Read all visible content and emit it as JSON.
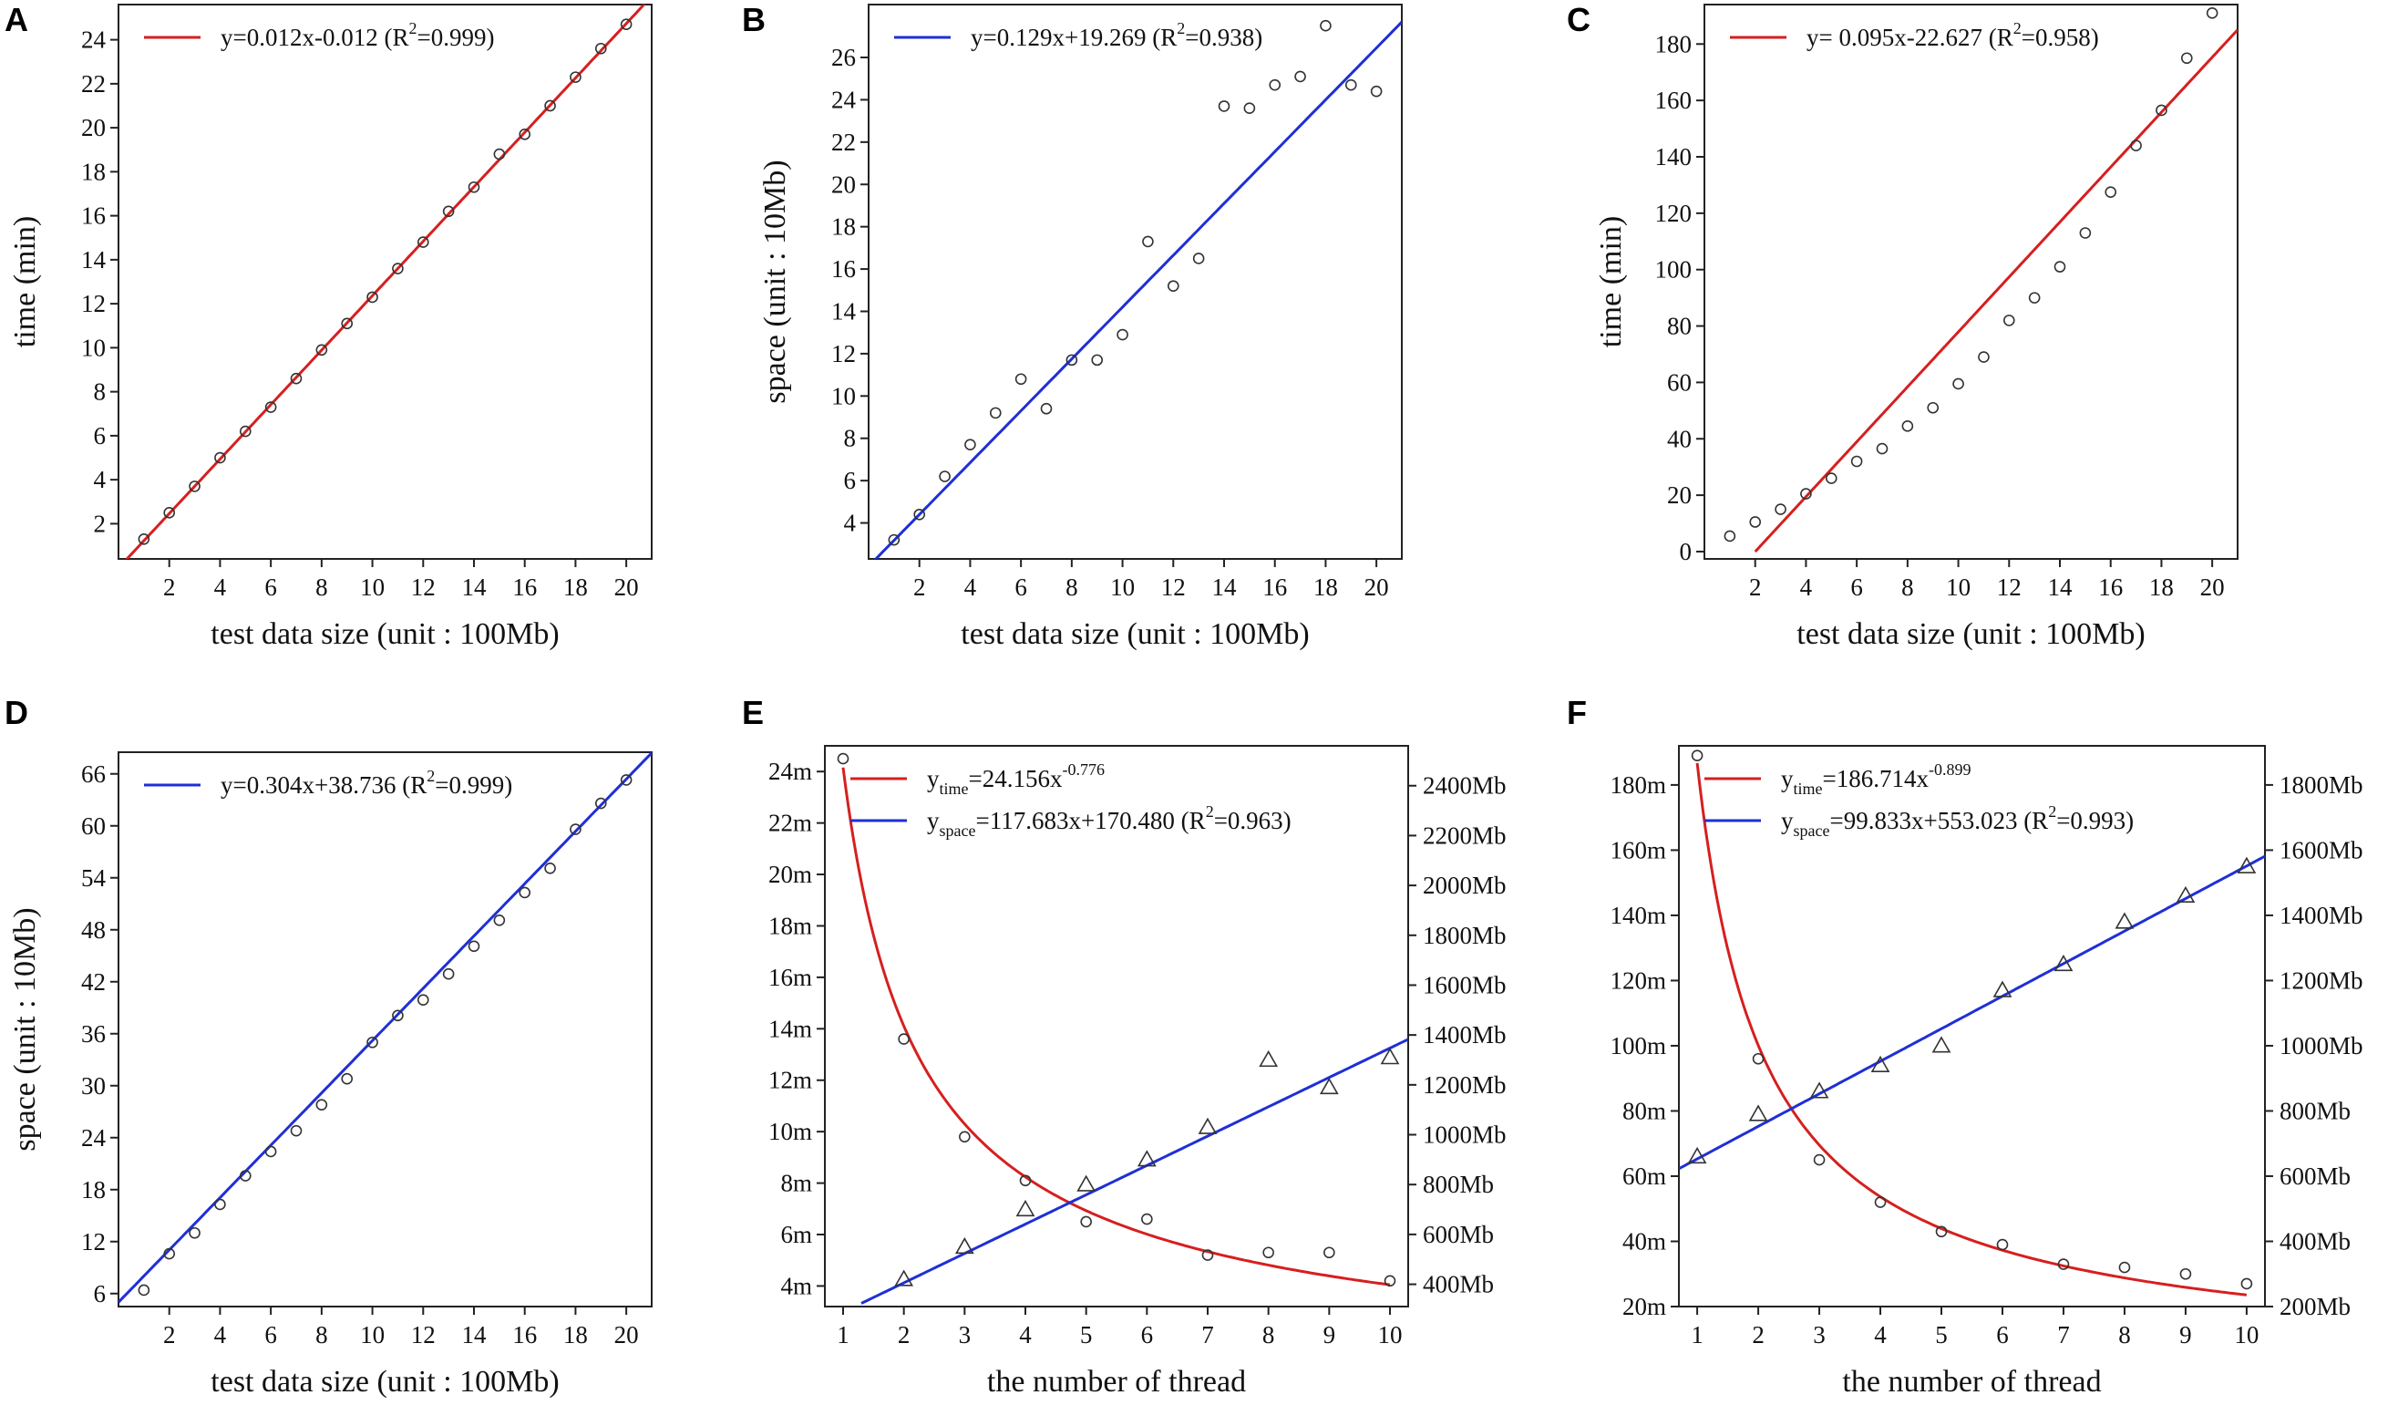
{
  "chart_data": [
    {
      "panel": "A",
      "type": "scatter",
      "xlabel": "test data size (unit : 100Mb)",
      "ylabel": "time (min)",
      "xlim": [
        0,
        21
      ],
      "ylim": [
        0.4,
        25.6
      ],
      "xticks": [
        2,
        4,
        6,
        8,
        10,
        12,
        14,
        16,
        18,
        20
      ],
      "yticks": [
        2,
        4,
        6,
        8,
        10,
        12,
        14,
        16,
        18,
        20,
        22,
        24
      ],
      "series": [
        {
          "name": "time",
          "color": "#d61f1f",
          "marker": "circle",
          "x": [
            1,
            2,
            3,
            4,
            5,
            6,
            7,
            8,
            9,
            10,
            11,
            12,
            13,
            14,
            15,
            16,
            17,
            18,
            19,
            20
          ],
          "y": [
            1.3,
            2.5,
            3.7,
            5.0,
            6.2,
            7.3,
            8.6,
            9.9,
            11.1,
            12.3,
            13.6,
            14.8,
            16.2,
            17.3,
            18.8,
            19.7,
            21.0,
            22.3,
            23.6,
            24.7
          ],
          "fit": {
            "kind": "linear",
            "a": 1.2375,
            "b": -0.012,
            "x_range": [
              0,
              21
            ]
          }
        }
      ],
      "legend": {
        "position": "top-left",
        "entries": [
          {
            "color": "#d61f1f",
            "label": "y=0.012x-0.012 (R",
            "sup": "2",
            "tail": "=0.999)"
          }
        ]
      }
    },
    {
      "panel": "B",
      "type": "scatter",
      "xlabel": "test data size (unit : 100Mb)",
      "ylabel": "space (unit : 10Mb)",
      "xlim": [
        0,
        21
      ],
      "ylim": [
        2.3,
        28.5
      ],
      "xticks": [
        2,
        4,
        6,
        8,
        10,
        12,
        14,
        16,
        18,
        20
      ],
      "yticks": [
        4,
        6,
        8,
        10,
        12,
        14,
        16,
        18,
        20,
        22,
        24,
        26
      ],
      "series": [
        {
          "name": "space",
          "color": "#1f2fd6",
          "marker": "circle",
          "x": [
            1,
            2,
            3,
            4,
            5,
            6,
            7,
            8,
            9,
            10,
            11,
            12,
            13,
            14,
            15,
            16,
            17,
            18,
            19,
            20
          ],
          "y": [
            3.2,
            4.4,
            6.2,
            7.7,
            9.2,
            10.8,
            9.4,
            11.7,
            11.7,
            12.9,
            17.3,
            15.2,
            16.5,
            23.7,
            23.6,
            24.7,
            25.1,
            27.5,
            24.7,
            24.4
          ],
          "fit": {
            "kind": "linear",
            "a": 1.225,
            "b": 1.95,
            "x_range": [
              0,
              21
            ]
          }
        }
      ],
      "legend": {
        "position": "top-left",
        "entries": [
          {
            "color": "#1f2fd6",
            "label": "y=0.129x+19.269 (R",
            "sup": "2",
            "tail": "=0.938)"
          }
        ]
      }
    },
    {
      "panel": "C",
      "type": "scatter",
      "xlabel": "test data size (unit : 100Mb)",
      "ylabel": "time (min)",
      "xlim": [
        0,
        21
      ],
      "ylim": [
        -2.6,
        194
      ],
      "xticks": [
        2,
        4,
        6,
        8,
        10,
        12,
        14,
        16,
        18,
        20
      ],
      "yticks": [
        0,
        20,
        40,
        60,
        80,
        100,
        120,
        140,
        160,
        180
      ],
      "series": [
        {
          "name": "time",
          "color": "#d61f1f",
          "marker": "circle",
          "x": [
            1,
            2,
            3,
            4,
            5,
            6,
            7,
            8,
            9,
            10,
            11,
            12,
            13,
            14,
            15,
            16,
            17,
            18,
            19,
            20
          ],
          "y": [
            5.5,
            10.5,
            15,
            20.5,
            26,
            32,
            36.5,
            44.5,
            51,
            59.5,
            69,
            82,
            90,
            101,
            113,
            127.5,
            144,
            156.5,
            175,
            191
          ],
          "fit": {
            "kind": "linear",
            "a": 9.74,
            "b": -19.5,
            "x_range": [
              2.0,
              21
            ]
          }
        }
      ],
      "legend": {
        "position": "top-left",
        "entries": [
          {
            "color": "#d61f1f",
            "label": "y= 0.095x-22.627 (R",
            "sup": "2",
            "tail": "=0.958)"
          }
        ]
      }
    },
    {
      "panel": "D",
      "type": "scatter",
      "xlabel": "test data size (unit : 100Mb)",
      "ylabel": "space (unit : 10Mb)",
      "xlim": [
        0,
        21
      ],
      "ylim": [
        4.5,
        68.5
      ],
      "xticks": [
        2,
        4,
        6,
        8,
        10,
        12,
        14,
        16,
        18,
        20
      ],
      "yticks": [
        6,
        12,
        18,
        24,
        30,
        36,
        42,
        48,
        54,
        60,
        66
      ],
      "series": [
        {
          "name": "space",
          "color": "#1f2fd6",
          "marker": "circle",
          "x": [
            1,
            2,
            3,
            4,
            5,
            6,
            7,
            8,
            9,
            10,
            11,
            12,
            13,
            14,
            15,
            16,
            17,
            18,
            19,
            20
          ],
          "y": [
            6.4,
            10.6,
            13.0,
            16.3,
            19.6,
            22.4,
            24.8,
            27.8,
            30.8,
            35.0,
            38.1,
            39.9,
            42.9,
            46.1,
            49.1,
            52.3,
            55.1,
            59.6,
            62.6,
            65.3
          ],
          "fit": {
            "kind": "linear",
            "a": 3.02,
            "b": 5.0,
            "x_range": [
              0,
              21
            ]
          }
        }
      ],
      "legend": {
        "position": "top-left",
        "entries": [
          {
            "color": "#1f2fd6",
            "label": "y=0.304x+38.736 (R",
            "sup": "2",
            "tail": "=0.999)"
          }
        ]
      }
    },
    {
      "panel": "E",
      "type": "scatter",
      "xlabel": "the number of thread",
      "xlim": [
        0.7,
        10.3
      ],
      "ylim": [
        3.2,
        25
      ],
      "y2lim": [
        310.6,
        2560
      ],
      "xticks": [
        1,
        2,
        3,
        4,
        5,
        6,
        7,
        8,
        9,
        10
      ],
      "yticks": [
        4,
        6,
        8,
        10,
        12,
        14,
        16,
        18,
        20,
        22,
        24
      ],
      "ytick_labels": [
        "4m",
        "6m",
        "8m",
        "10m",
        "12m",
        "14m",
        "16m",
        "18m",
        "20m",
        "22m",
        "24m"
      ],
      "y2ticks": [
        400,
        600,
        800,
        1000,
        1200,
        1400,
        1600,
        1800,
        2000,
        2200,
        2400
      ],
      "y2tick_labels": [
        "400Mb",
        "600Mb",
        "800Mb",
        "1000Mb",
        "1200Mb",
        "1400Mb",
        "1600Mb",
        "1800Mb",
        "2000Mb",
        "2200Mb",
        "2400Mb"
      ],
      "series": [
        {
          "name": "time",
          "axis": "left",
          "color": "#d61f1f",
          "marker": "circle",
          "x": [
            1,
            2,
            3,
            4,
            5,
            6,
            7,
            8,
            9,
            10
          ],
          "y": [
            24.5,
            13.6,
            9.8,
            8.1,
            6.5,
            6.6,
            5.2,
            5.3,
            5.3,
            4.2
          ],
          "fit": {
            "kind": "power",
            "a": 24.156,
            "b": -0.776,
            "x_range": [
              1,
              10
            ]
          }
        },
        {
          "name": "space",
          "axis": "right",
          "color": "#1f2fd6",
          "marker": "triangle",
          "x": [
            2,
            3,
            4,
            5,
            6,
            7,
            8,
            9,
            10
          ],
          "y": [
            420,
            550,
            700,
            800,
            900,
            1030,
            1300,
            1190,
            1310
          ],
          "fit": {
            "kind": "linear",
            "a": 117.683,
            "b": 170.48,
            "x_range": [
              1.3,
              10.3
            ]
          }
        }
      ],
      "legend": {
        "position": "top-left",
        "entries": [
          {
            "color": "#d61f1f",
            "label": "y",
            "sub": "time",
            "tail": "=24.156x",
            "sup": "-0.776"
          },
          {
            "color": "#1f2fd6",
            "label": "y",
            "sub": "space",
            "tail": "=117.683x+170.480 (R",
            "sup": "2",
            "tail2": "=0.963)"
          }
        ]
      }
    },
    {
      "panel": "F",
      "type": "scatter",
      "xlabel": "the number of thread",
      "xlim": [
        0.7,
        10.3
      ],
      "ylim": [
        20,
        192
      ],
      "y2lim": [
        200,
        1920
      ],
      "xticks": [
        1,
        2,
        3,
        4,
        5,
        6,
        7,
        8,
        9,
        10
      ],
      "yticks": [
        20,
        40,
        60,
        80,
        100,
        120,
        140,
        160,
        180
      ],
      "ytick_labels": [
        "20m",
        "40m",
        "60m",
        "80m",
        "100m",
        "120m",
        "140m",
        "160m",
        "180m"
      ],
      "y2ticks": [
        200,
        400,
        600,
        800,
        1000,
        1200,
        1400,
        1600,
        1800
      ],
      "y2tick_labels": [
        "200Mb",
        "400Mb",
        "600Mb",
        "800Mb",
        "1000Mb",
        "1200Mb",
        "1400Mb",
        "1600Mb",
        "1800Mb"
      ],
      "series": [
        {
          "name": "time",
          "axis": "left",
          "color": "#d61f1f",
          "marker": "circle",
          "x": [
            1,
            2,
            3,
            4,
            5,
            6,
            7,
            8,
            9,
            10
          ],
          "y": [
            189,
            96,
            65,
            52,
            43,
            39,
            33,
            32,
            30,
            27
          ],
          "fit": {
            "kind": "power",
            "a": 186.714,
            "b": -0.899,
            "x_range": [
              1,
              10
            ]
          }
        },
        {
          "name": "space",
          "axis": "right",
          "color": "#1f2fd6",
          "marker": "triangle",
          "x": [
            1,
            2,
            3,
            4,
            5,
            6,
            7,
            8,
            9,
            10
          ],
          "y": [
            660,
            790,
            860,
            940,
            1000,
            1170,
            1250,
            1380,
            1460,
            1550
          ],
          "fit": {
            "kind": "linear",
            "a": 99.833,
            "b": 553.023,
            "x_range": [
              0.7,
              10.3
            ]
          }
        }
      ],
      "legend": {
        "position": "top-left",
        "entries": [
          {
            "color": "#d61f1f",
            "label": "y",
            "sub": "time",
            "tail": "=186.714x",
            "sup": "-0.899"
          },
          {
            "color": "#1f2fd6",
            "label": "y",
            "sub": "space",
            "tail": "=99.833x+553.023 (R",
            "sup": "2",
            "tail2": "=0.993)"
          }
        ]
      }
    }
  ]
}
